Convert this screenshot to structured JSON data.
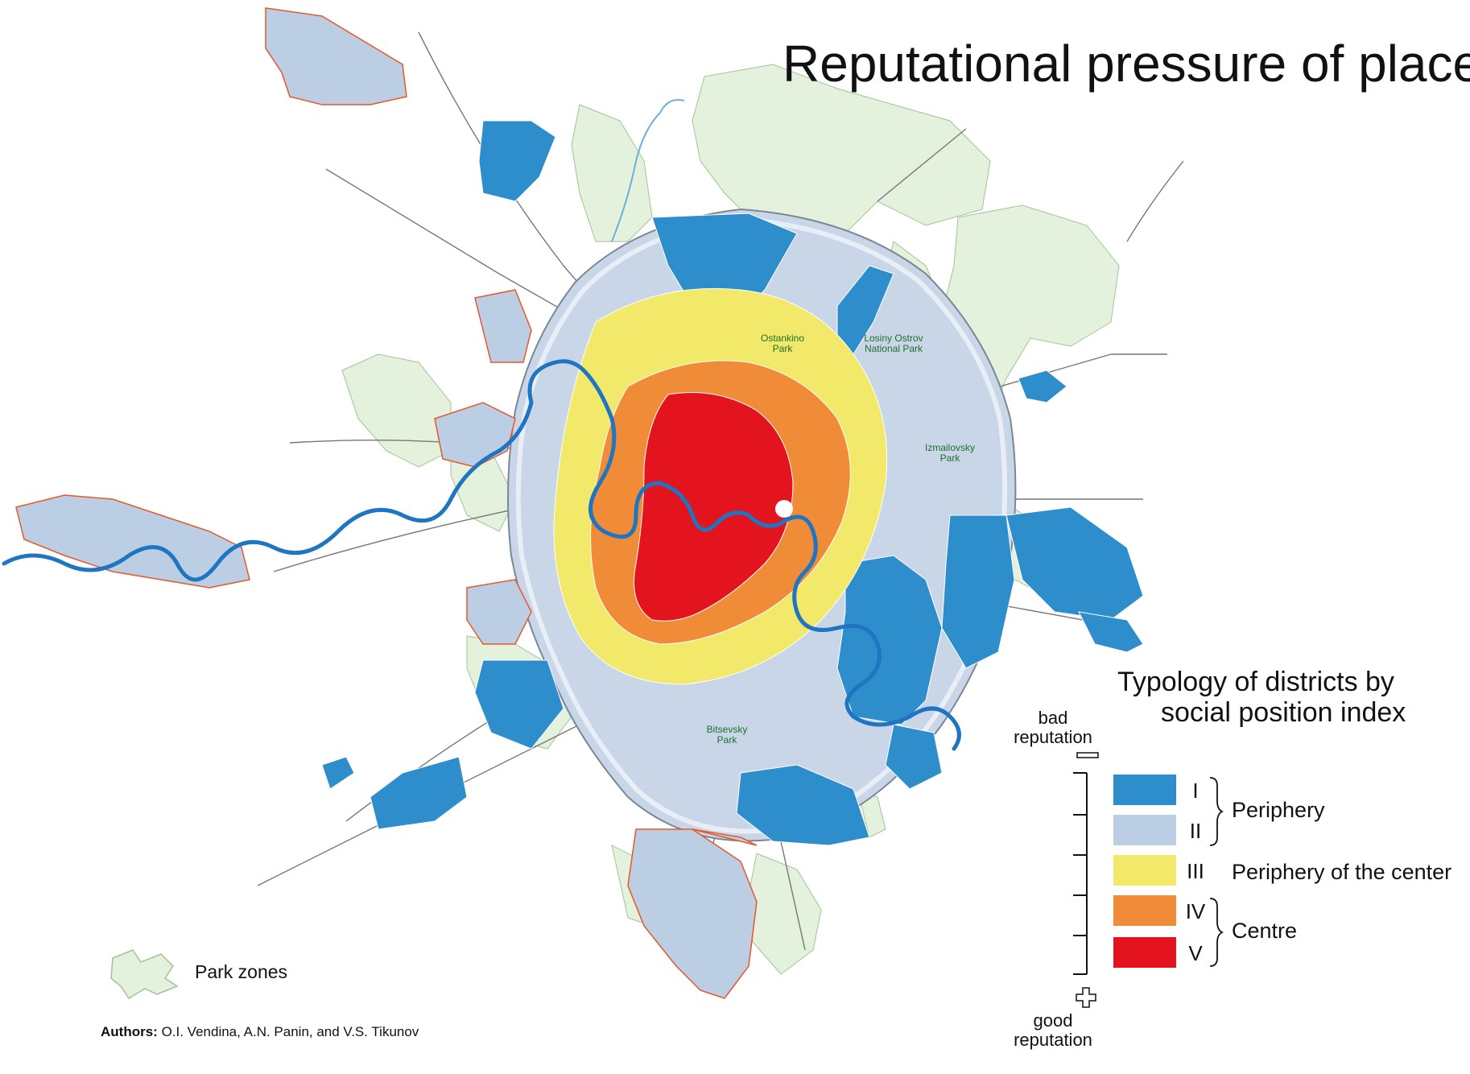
{
  "title": "Reputational pressure of place",
  "legend": {
    "title_line1": "Typology of districts by",
    "title_line2": "social position index",
    "scale_top_label_1": "bad",
    "scale_top_label_2": "reputation",
    "scale_bottom_label_1": "good",
    "scale_bottom_label_2": "reputation",
    "classes": [
      {
        "code": "I",
        "color": "#2e8ecb"
      },
      {
        "code": "II",
        "color": "#bccee3"
      },
      {
        "code": "III",
        "color": "#f2e96a"
      },
      {
        "code": "IV",
        "color": "#f08c37"
      },
      {
        "code": "V",
        "color": "#e3141e"
      }
    ],
    "groups": {
      "periphery": "Periphery",
      "periphery_center": "Periphery of the center",
      "centre": "Centre"
    }
  },
  "parks": {
    "ostankino": [
      "Ostankino",
      "Park"
    ],
    "losiny": [
      "Losiny Ostrov",
      "National Park"
    ],
    "izmailovsky": [
      "Izmailovsky",
      "Park"
    ],
    "bitsevsky": [
      "Bitsevsky",
      "Park"
    ]
  },
  "park_zones_label": "Park zones",
  "park_color": "#e4f1dd",
  "river_color": "#1f75c2",
  "boundary_color": "#e8572a",
  "authors_prefix": "Authors:",
  "authors_names": "O.I. Vendina, A.N. Panin, and V.S. Tikunov"
}
